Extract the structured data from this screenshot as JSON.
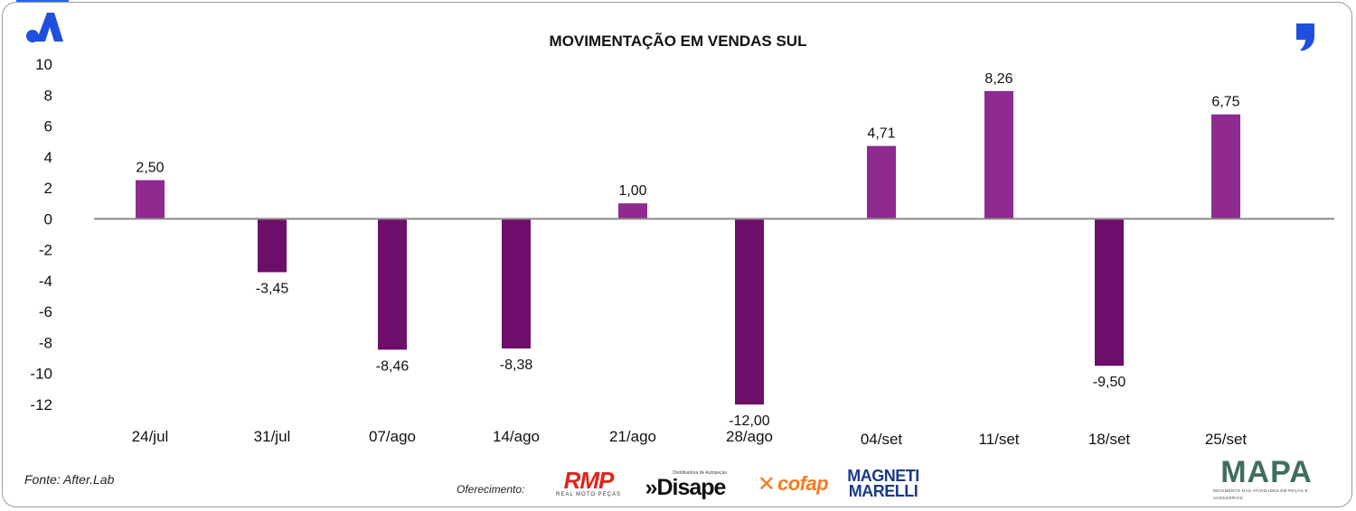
{
  "colors": {
    "positive_bar": "#8e2a90",
    "negative_bar": "#6e0e6a",
    "axis": "#8a8a8a",
    "brand_blue": "#1f4fe0"
  },
  "chart_data": {
    "type": "bar",
    "title": "MOVIMENTAÇÃO EM VENDAS SUL",
    "xlabel": "",
    "ylabel": "",
    "ylim": [
      -12,
      10
    ],
    "yticks": [
      "10",
      "8",
      "6",
      "4",
      "2",
      "0",
      "-2",
      "-4",
      "-6",
      "-8",
      "-10",
      "-12"
    ],
    "ytick_values": [
      10,
      8,
      6,
      4,
      2,
      0,
      -2,
      -4,
      -6,
      -8,
      -10,
      -12
    ],
    "categories": [
      "24/jul",
      "31/jul",
      "07/ago",
      "14/ago",
      "21/ago",
      "28/ago",
      "04/set",
      "11/set",
      "18/set",
      "25/set"
    ],
    "values": [
      2.5,
      -3.45,
      -8.46,
      -8.38,
      1.0,
      -12.0,
      4.71,
      8.26,
      -9.5,
      6.75
    ],
    "data_labels": [
      "2,50",
      "-3,45",
      "-8,46",
      "-8,38",
      "1,00",
      "-12,00",
      "4,71",
      "8,26",
      "-9,50",
      "6,75"
    ],
    "grid": false,
    "legend": "none"
  },
  "footer": {
    "source": "Fonte: After.Lab",
    "sponsor_label": "Oferecimento:"
  },
  "sponsors": {
    "rmp": {
      "main": "RMP",
      "sub": "REAL MOTO PEÇAS"
    },
    "disape": {
      "sub": "Distribuidora de Autopeças",
      "main": "»Disape"
    },
    "cofap": {
      "main": "cofap"
    },
    "magneti": {
      "line1": "MAGNETI",
      "line2": "MARELLI"
    },
    "mapa": {
      "main": "MAPA",
      "sub": "MOVIMENTO DAS ATIVIDADES EM PEÇAS E ACESSÓRIOS"
    }
  },
  "icons": {
    "brand": "a-logo-icon",
    "quote": "quote-comma-icon"
  }
}
